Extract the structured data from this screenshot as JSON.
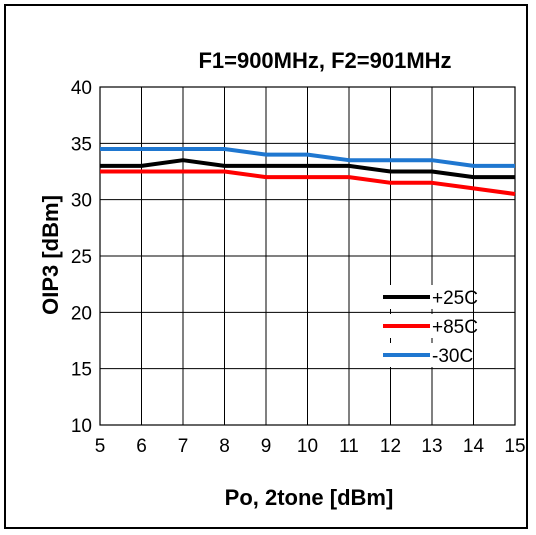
{
  "chart_data": {
    "type": "line",
    "title": "F1=900MHz, F2=901MHz",
    "xlabel": "Po, 2tone [dBm]",
    "ylabel": "OIP3 [dBm]",
    "xlim": [
      5,
      15
    ],
    "ylim": [
      10,
      40
    ],
    "x_ticks": [
      "5",
      "6",
      "7",
      "8",
      "9",
      "10",
      "11",
      "12",
      "13",
      "14",
      "15"
    ],
    "y_ticks": [
      "10",
      "15",
      "20",
      "25",
      "30",
      "35",
      "40"
    ],
    "grid": true,
    "legend_position": "right-middle",
    "x": [
      5,
      6,
      7,
      8,
      9,
      10,
      11,
      12,
      13,
      14,
      15
    ],
    "series": [
      {
        "name": "+25C",
        "color": "#000000",
        "values": [
          33,
          33,
          33.5,
          33,
          33,
          33,
          33,
          32.5,
          32.5,
          32,
          32
        ]
      },
      {
        "name": "+85C",
        "color": "#ff0000",
        "values": [
          32.5,
          32.5,
          32.5,
          32.5,
          32,
          32,
          32,
          31.5,
          31.5,
          31,
          30.5
        ]
      },
      {
        "name": "-30C",
        "color": "#1f77d0",
        "values": [
          34.5,
          34.5,
          34.5,
          34.5,
          34,
          34,
          33.5,
          33.5,
          33.5,
          33,
          33
        ]
      }
    ]
  }
}
